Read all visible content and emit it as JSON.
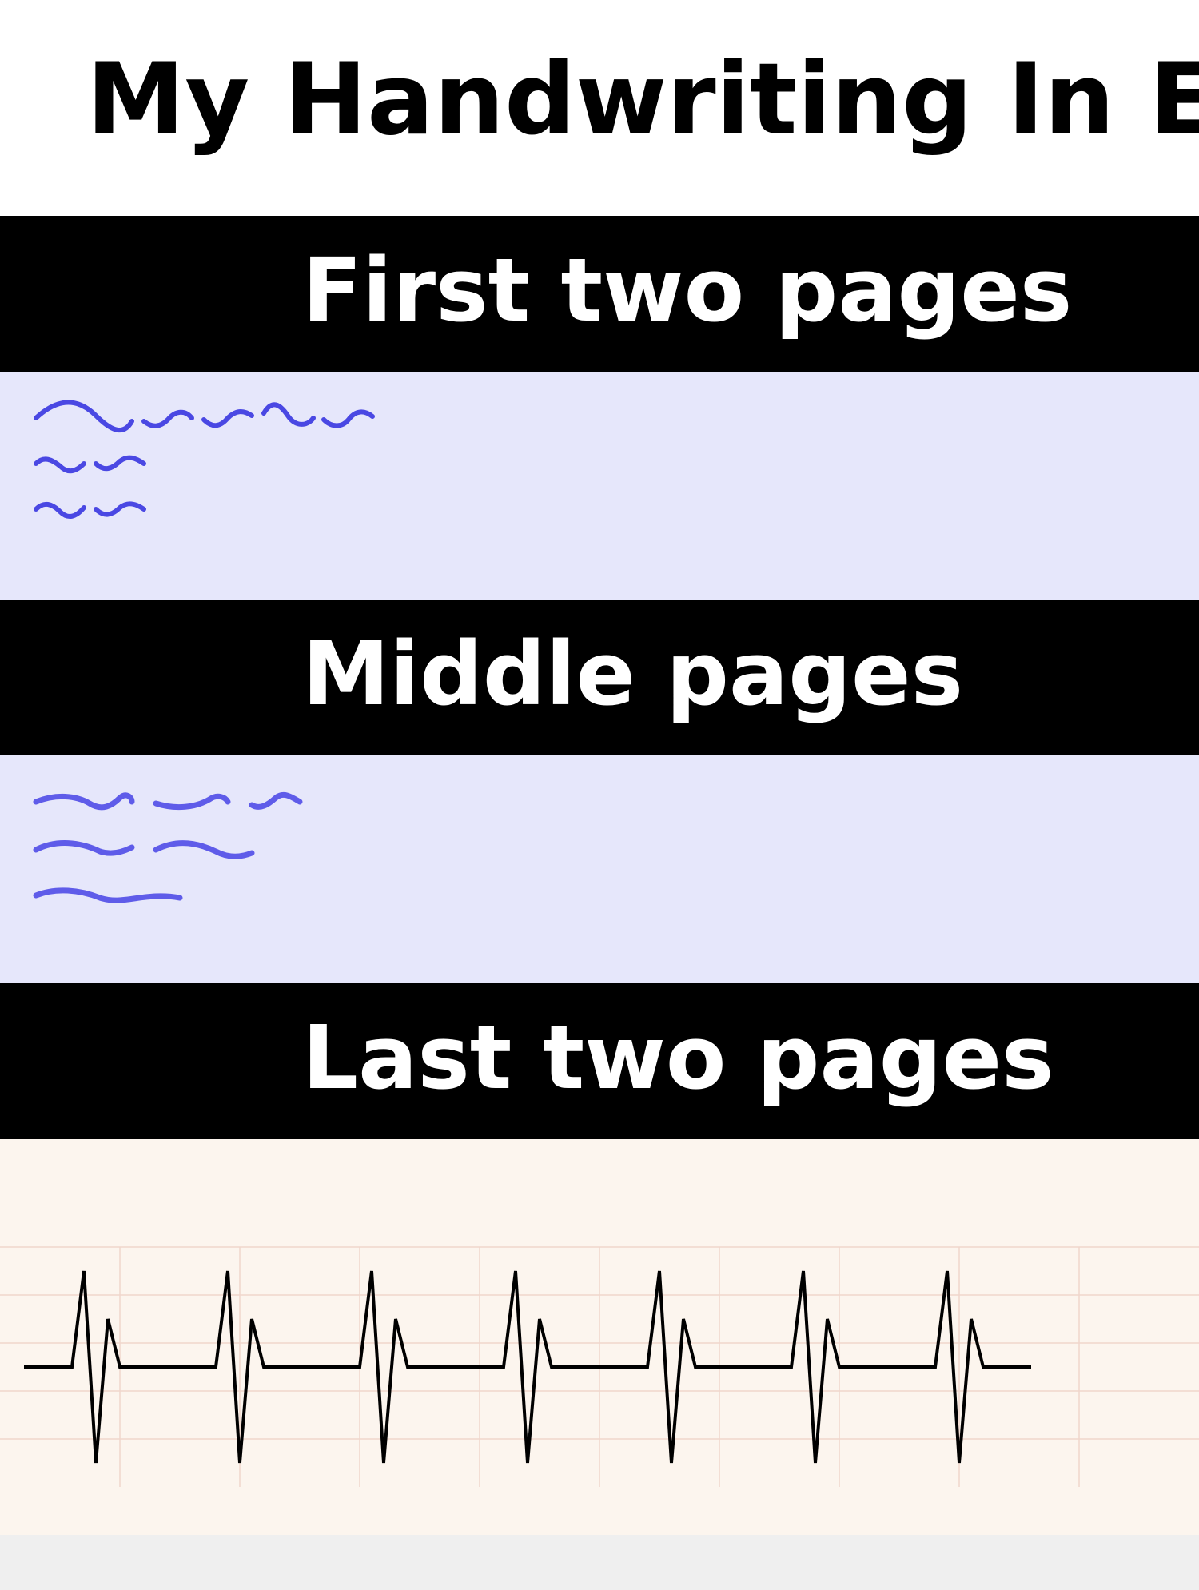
{
  "title": "My Handwriting In E",
  "sections": [
    {
      "label": "First two pages",
      "panel_color": "#e6e7fb",
      "ink_color": "#4a48e3"
    },
    {
      "label": "Middle pages",
      "panel_color": "#e6e7fb",
      "ink_color": "#5f5ce9"
    },
    {
      "label": "Last two pages",
      "panel_color": "#fcf5ee",
      "ink_color": "#000000",
      "grid_color": "#f0d6cc"
    }
  ],
  "colors": {
    "band": "#000000",
    "band_text": "#ffffff",
    "background": "#ffffff",
    "footer": "#efefef"
  }
}
